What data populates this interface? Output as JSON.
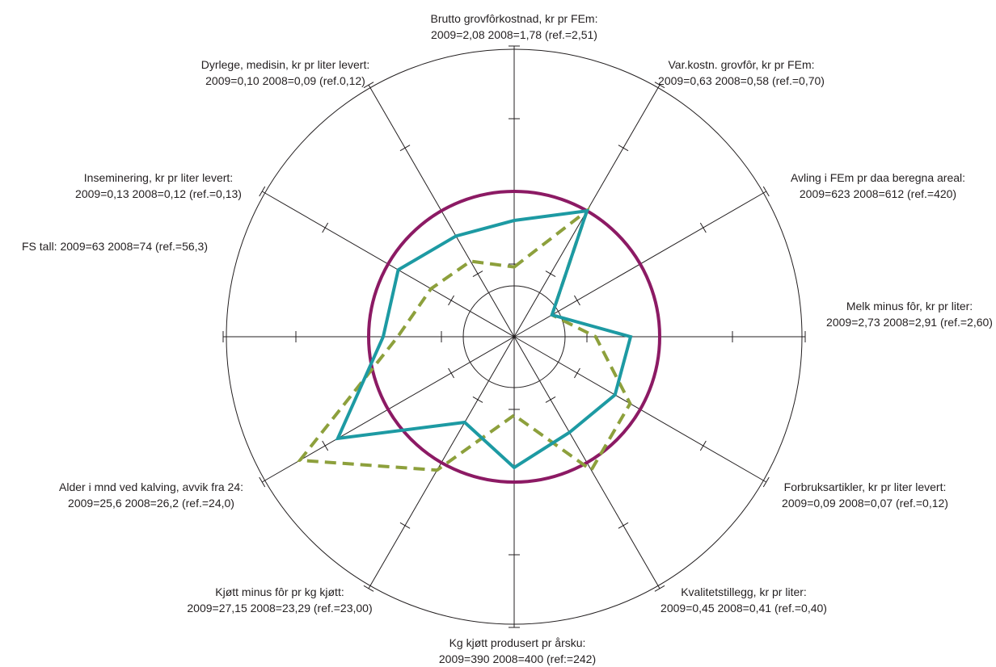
{
  "chart_data": {
    "type": "radar",
    "colors": {
      "axes": "#231f20",
      "reference_circle": "#8c1a64",
      "series_2009": "#1d9aa3",
      "series_2008": "#8da03c"
    },
    "series": [
      {
        "name": "",
        "style": "solid",
        "color": "#1d9aa3",
        "values": [
          0.4,
          0.5,
          0.15,
          0.4,
          0.4,
          0.38,
          0.45,
          0.34,
          0.7,
          0.45,
          0.46,
          0.4
        ]
      },
      {
        "name": "",
        "style": "dashed",
        "color": "#8da03c",
        "values": [
          0.24,
          0.5,
          0.15,
          0.28,
          0.46,
          0.53,
          0.27,
          0.53,
          0.85,
          0.4,
          0.33,
          0.3
        ]
      }
    ],
    "reference_circle": 0.5,
    "inner_circle": 0.175,
    "ticks": [
      0.25,
      0.5,
      0.75
    ],
    "axes": [
      {
        "title": "Brutto grovfôrkostnad, kr pr FEm:",
        "values": "2009=2,08   2008=1,78   (ref.=2,51)"
      },
      {
        "title": "Var.kostn. grovfôr, kr pr FEm:",
        "values": "2009=0,63   2008=0,58   (ref.=0,70)"
      },
      {
        "title": "Avling i FEm pr daa beregna areal:",
        "values": "2009=623   2008=612   (ref.=420)"
      },
      {
        "title": "Melk minus fôr, kr pr liter:",
        "values": "2009=2,73   2008=2,91   (ref.=2,60)"
      },
      {
        "title": "Forbruksartikler, kr pr liter levert:",
        "values": "2009=0,09   2008=0,07   (ref.=0,12)"
      },
      {
        "title": "Kvalitetstillegg, kr pr liter:",
        "values": "2009=0,45   2008=0,41   (ref.=0,40)"
      },
      {
        "title": "Kg kjøtt produsert pr årsku:",
        "values": "2009=390   2008=400   (ref:=242)"
      },
      {
        "title": "Kjøtt minus fôr pr kg kjøtt:",
        "values": "2009=27,15   2008=23,29   (ref.=23,00)"
      },
      {
        "title": "Alder i mnd ved kalving, avvik fra 24:",
        "values": "2009=25,6   2008=26,2   (ref.=24,0)"
      },
      {
        "title": "FS tall:   2009=63   2008=74   (ref.=56,3)",
        "values": ""
      },
      {
        "title": "Inseminering, kr pr liter levert:",
        "values": "2009=0,13   2008=0,12   (ref.=0,13)"
      },
      {
        "title": "Dyrlege, medisin, kr pr liter levert:",
        "values": "2009=0,10   2008=0,09   (ref.0,12)"
      }
    ]
  }
}
